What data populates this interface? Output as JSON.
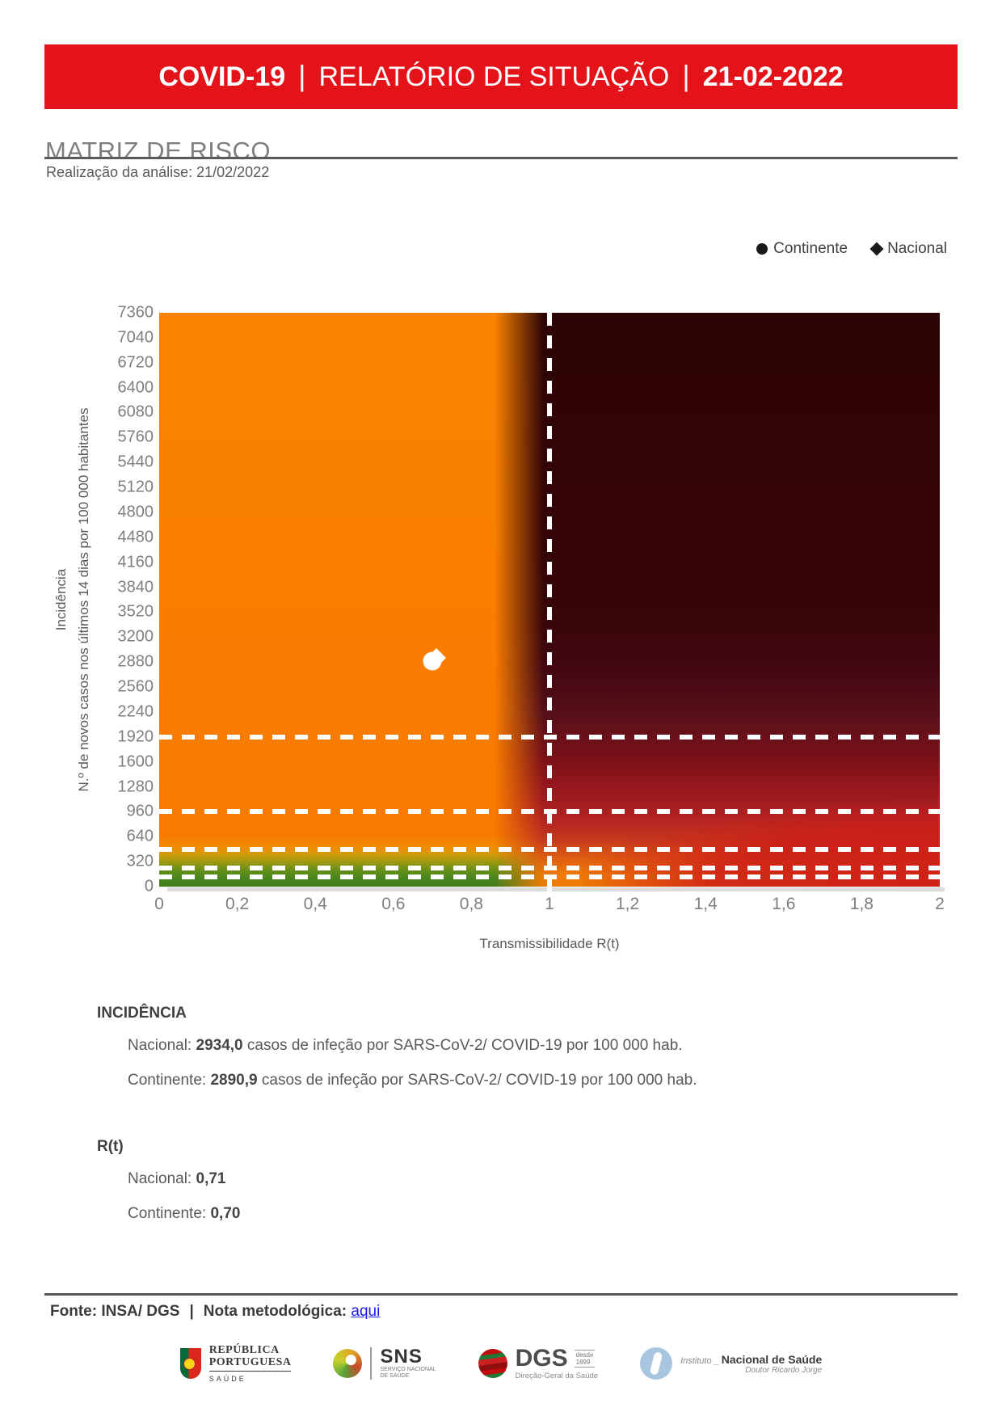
{
  "colors": {
    "banner_red": "#E41219",
    "orange_zone": "#F97D00",
    "green_zone": "#47851D",
    "dark_red_zone": "#330405",
    "bright_red_zone": "#B12222",
    "threshold_line_white": "#FFFFFF",
    "link_blue": "#1A1AEE",
    "text_gray": "#595959",
    "axis_gray": "#7F7F7F"
  },
  "header": {
    "product": "COVID-19",
    "separator": "|",
    "title": "RELATÓRIO DE SITUAÇÃO",
    "date": "21-02-2022"
  },
  "section": {
    "title": "MATRIZ DE RISCO",
    "analysis_label": "Realização da análise: 21/02/2022"
  },
  "legend": {
    "continente": "Continente",
    "nacional": "Nacional"
  },
  "chart_data": {
    "type": "scatter",
    "title": "MATRIZ DE RISCO",
    "xlabel": "Transmissibilidade R(t)",
    "ylabel": "Incidência",
    "ylabel_detail": "N.º de novos casos nos últimos 14 dias por 100 000 habitantes",
    "xlim": [
      0,
      2
    ],
    "ylim": [
      0,
      7360
    ],
    "grid": false,
    "legend_position": "top-right",
    "background": "risk heatmap: orange low-R(t) zone, green low-incidence band at bottom-left, dark red high-R(t)/high-incidence zone right of R(t)=1",
    "x_ticks": [
      {
        "label": "0",
        "value": 0
      },
      {
        "label": "0,2",
        "value": 0.2
      },
      {
        "label": "0,4",
        "value": 0.4
      },
      {
        "label": "0,6",
        "value": 0.6
      },
      {
        "label": "0,8",
        "value": 0.8
      },
      {
        "label": "1",
        "value": 1
      },
      {
        "label": "1,2",
        "value": 1.2
      },
      {
        "label": "1,4",
        "value": 1.4
      },
      {
        "label": "1,6",
        "value": 1.6
      },
      {
        "label": "1,8",
        "value": 1.8
      },
      {
        "label": "2",
        "value": 2
      }
    ],
    "y_ticks": [
      {
        "label": "7360",
        "value": 7360
      },
      {
        "label": "7040",
        "value": 7040
      },
      {
        "label": "6720",
        "value": 6720
      },
      {
        "label": "6400",
        "value": 6400
      },
      {
        "label": "6080",
        "value": 6080
      },
      {
        "label": "5760",
        "value": 5760
      },
      {
        "label": "5440",
        "value": 5440
      },
      {
        "label": "5120",
        "value": 5120
      },
      {
        "label": "4800",
        "value": 4800
      },
      {
        "label": "4480",
        "value": 4480
      },
      {
        "label": "4160",
        "value": 4160
      },
      {
        "label": "3840",
        "value": 3840
      },
      {
        "label": "3520",
        "value": 3520
      },
      {
        "label": "3200",
        "value": 3200
      },
      {
        "label": "2880",
        "value": 2880
      },
      {
        "label": "2560",
        "value": 2560
      },
      {
        "label": "2240",
        "value": 2240
      },
      {
        "label": "1920",
        "value": 1920
      },
      {
        "label": "1600",
        "value": 1600
      },
      {
        "label": "1280",
        "value": 1280
      },
      {
        "label": "960",
        "value": 960
      },
      {
        "label": "640",
        "value": 640
      },
      {
        "label": "320",
        "value": 320
      },
      {
        "label": "0",
        "value": 0
      }
    ],
    "reference_lines": {
      "vertical_rt": [
        1
      ],
      "horizontal_incidence": [
        1920,
        960,
        480,
        240,
        120
      ]
    },
    "series": [
      {
        "name": "Continente",
        "marker": "circle",
        "rt": 0.7,
        "incidence": 2890.9
      },
      {
        "name": "Nacional",
        "marker": "diamond",
        "rt": 0.71,
        "incidence": 2934.0
      }
    ]
  },
  "stats": {
    "incidence": {
      "heading": "INCIDÊNCIA",
      "rows": [
        {
          "label": "Nacional: ",
          "value": "2934,0",
          "suffix": " casos de infeção por SARS-CoV-2/ COVID-19 por 100 000 hab."
        },
        {
          "label": "Continente: ",
          "value": "2890,9",
          "suffix": " casos de infeção por SARS-CoV-2/ COVID-19 por 100 000 hab."
        }
      ]
    },
    "rt": {
      "heading": "R(t)",
      "rows": [
        {
          "label": "Nacional: ",
          "value": "0,71"
        },
        {
          "label": "Continente: ",
          "value": "0,70"
        }
      ]
    }
  },
  "footer": {
    "source": "Fonte: INSA/ DGS",
    "separator": "|",
    "note_label": "Nota metodológica:",
    "link_text": "aqui"
  },
  "logos": {
    "republica": {
      "line1": "REPÚBLICA",
      "line2": "PORTUGUESA",
      "sub": "SAÚDE"
    },
    "sns": {
      "abbr": "SNS",
      "sub_line1": "SERVIÇO NACIONAL",
      "sub_line2": "DE SAÚDE"
    },
    "dgs": {
      "abbr": "DGS",
      "since_word": "desde",
      "since_year": "1899",
      "sub": "Direção-Geral da Saúde"
    },
    "insa": {
      "prefix": "Instituto _",
      "name": "Nacional de Saúde",
      "sub": "Doutor Ricardo Jorge"
    }
  }
}
